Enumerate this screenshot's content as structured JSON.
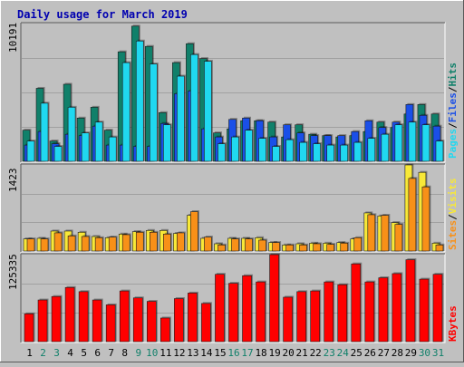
{
  "title": "Daily usage for March 2019",
  "colors": {
    "background": "#c0c0c0",
    "title": "#0000b0",
    "hits": "#10806a",
    "files": "#1a4fe8",
    "pages": "#20d8f0",
    "visits": "#f8e838",
    "sites": "#f89018",
    "kbytes": "#ff0000",
    "grid": "#a0a0a0",
    "weekend_day": "#10806a",
    "weekday_day": "#000000",
    "separator": "#7a7a7a"
  },
  "chart_data": [
    {
      "type": "bar",
      "panel": "hits-files-pages",
      "max_label": "10191",
      "ylim": [
        0,
        10191
      ],
      "legend": [
        {
          "name": "Pages",
          "color": "#20d8f0"
        },
        {
          "name": "Files",
          "color": "#1a4fe8"
        },
        {
          "name": "Hits",
          "color": "#10806a"
        }
      ],
      "series": [
        {
          "name": "Hits",
          "values": [
            2300,
            5400,
            1500,
            5700,
            3200,
            4000,
            2300,
            8100,
            10000,
            8500,
            3600,
            7300,
            8700,
            7600,
            2100,
            2400,
            3000,
            3000,
            2900,
            1800,
            2700,
            2000,
            1900,
            1800,
            1900,
            2200,
            2900,
            2500,
            3500,
            4200,
            3500
          ]
        },
        {
          "name": "Files",
          "values": [
            1200,
            2200,
            1300,
            2000,
            1900,
            2600,
            1200,
            1200,
            1100,
            1100,
            2800,
            5000,
            5200,
            2400,
            1800,
            3100,
            3200,
            3000,
            1800,
            2700,
            2100,
            1900,
            1900,
            1900,
            2200,
            3000,
            2500,
            2900,
            4200,
            3400,
            2600
          ]
        },
        {
          "name": "Pages",
          "values": [
            1500,
            4300,
            1100,
            4000,
            2100,
            2900,
            1800,
            7300,
            8900,
            7200,
            2700,
            6300,
            7900,
            7400,
            1300,
            1800,
            2300,
            1700,
            1100,
            1600,
            1400,
            1300,
            1200,
            1200,
            1400,
            1700,
            2000,
            2700,
            2900,
            2700,
            1500
          ]
        }
      ],
      "categories": [
        "1",
        "2",
        "3",
        "4",
        "5",
        "6",
        "7",
        "8",
        "9",
        "10",
        "11",
        "12",
        "13",
        "14",
        "15",
        "16",
        "17",
        "18",
        "19",
        "20",
        "21",
        "22",
        "23",
        "24",
        "25",
        "26",
        "27",
        "28",
        "29",
        "30",
        "31"
      ]
    },
    {
      "type": "bar",
      "panel": "visits-sites",
      "max_label": "1423",
      "ylim": [
        0,
        1423
      ],
      "legend": [
        {
          "name": "Sites",
          "color": "#f89018"
        },
        {
          "name": "Visits",
          "color": "#f8e838"
        },
        {
          "name": "/",
          "color": "#000000"
        }
      ],
      "series": [
        {
          "name": "Visits",
          "values": [
            200,
            210,
            330,
            330,
            310,
            240,
            220,
            280,
            320,
            340,
            340,
            290,
            590,
            210,
            120,
            210,
            210,
            220,
            140,
            100,
            120,
            130,
            130,
            140,
            200,
            630,
            580,
            470,
            1423,
            1300,
            130
          ]
        },
        {
          "name": "Sites",
          "values": [
            200,
            200,
            300,
            250,
            240,
            220,
            230,
            270,
            310,
            310,
            280,
            300,
            650,
            230,
            100,
            200,
            200,
            180,
            140,
            100,
            100,
            120,
            110,
            130,
            220,
            600,
            590,
            440,
            1200,
            1060,
            100
          ]
        }
      ]
    },
    {
      "type": "bar",
      "panel": "kbytes",
      "max_label": "125335",
      "ylim": [
        0,
        125335
      ],
      "legend": [
        {
          "name": "KBytes",
          "color": "#ff0000"
        }
      ],
      "series": [
        {
          "name": "KBytes",
          "values": [
            40000,
            60000,
            65000,
            78000,
            72000,
            60000,
            53000,
            73000,
            63000,
            58000,
            34000,
            62000,
            70000,
            55000,
            97000,
            84000,
            95000,
            86000,
            125335,
            64000,
            72000,
            73000,
            86000,
            82000,
            112000,
            86000,
            92000,
            98000,
            118000,
            90000,
            97000
          ]
        }
      ]
    }
  ],
  "days": [
    {
      "label": "1",
      "weekend": false
    },
    {
      "label": "2",
      "weekend": true
    },
    {
      "label": "3",
      "weekend": true
    },
    {
      "label": "4",
      "weekend": false
    },
    {
      "label": "5",
      "weekend": false
    },
    {
      "label": "6",
      "weekend": false
    },
    {
      "label": "7",
      "weekend": false
    },
    {
      "label": "8",
      "weekend": false
    },
    {
      "label": "9",
      "weekend": true
    },
    {
      "label": "10",
      "weekend": true
    },
    {
      "label": "11",
      "weekend": false
    },
    {
      "label": "12",
      "weekend": false
    },
    {
      "label": "13",
      "weekend": false
    },
    {
      "label": "14",
      "weekend": false
    },
    {
      "label": "15",
      "weekend": false
    },
    {
      "label": "16",
      "weekend": true
    },
    {
      "label": "17",
      "weekend": true
    },
    {
      "label": "18",
      "weekend": false
    },
    {
      "label": "19",
      "weekend": false
    },
    {
      "label": "20",
      "weekend": false
    },
    {
      "label": "21",
      "weekend": false
    },
    {
      "label": "22",
      "weekend": false
    },
    {
      "label": "23",
      "weekend": true
    },
    {
      "label": "24",
      "weekend": true
    },
    {
      "label": "25",
      "weekend": false
    },
    {
      "label": "26",
      "weekend": false
    },
    {
      "label": "27",
      "weekend": false
    },
    {
      "label": "28",
      "weekend": false
    },
    {
      "label": "29",
      "weekend": false
    },
    {
      "label": "30",
      "weekend": true
    },
    {
      "label": "31",
      "weekend": true
    }
  ]
}
